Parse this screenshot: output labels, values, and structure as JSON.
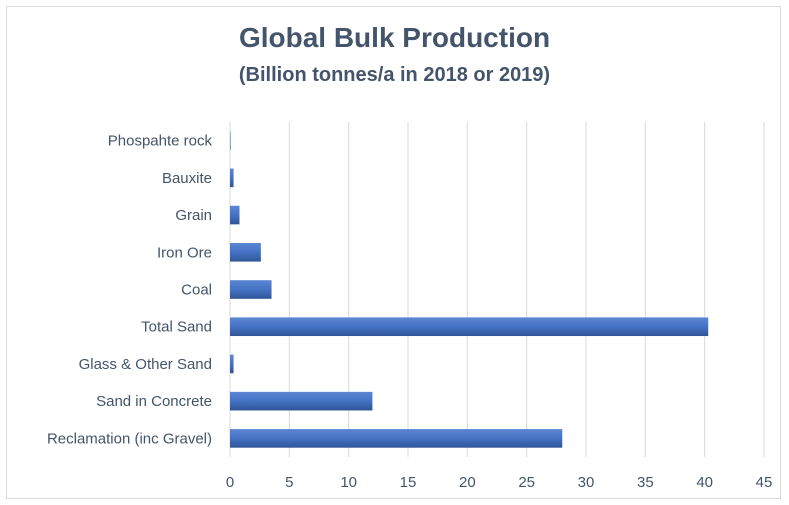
{
  "chart_data": {
    "type": "bar",
    "orientation": "horizontal",
    "title": "Global Bulk Production",
    "subtitle": "(Billion tonnes/a in 2018 or 2019)",
    "xlabel": "",
    "ylabel": "",
    "categories": [
      "Phospahte rock",
      "Bauxite",
      "Grain",
      "Iron Ore",
      "Coal",
      "Total Sand",
      "Glass & Other Sand",
      "Sand in Concrete",
      "Reclamation (inc Gravel)"
    ],
    "values": [
      0.05,
      0.3,
      0.8,
      2.6,
      3.5,
      40.3,
      0.3,
      12,
      28
    ],
    "xlim": [
      0,
      45
    ],
    "xticks": [
      0,
      5,
      10,
      15,
      20,
      25,
      30,
      35,
      40,
      45
    ],
    "grid": "vertical",
    "bar_color": "#4472c4",
    "text_color": "#44546a"
  }
}
